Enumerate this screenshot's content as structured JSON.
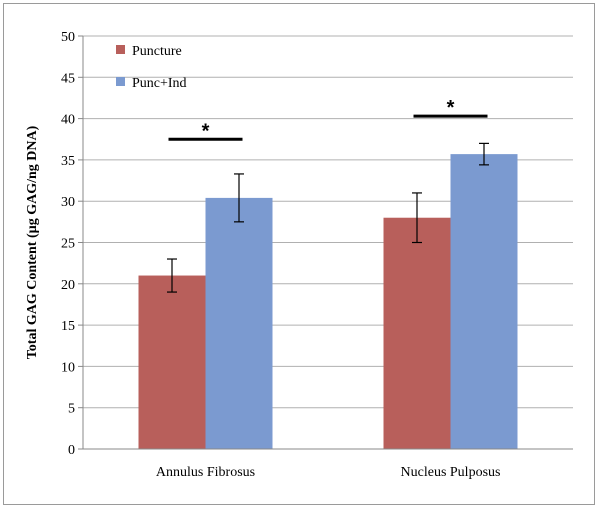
{
  "chart_data": {
    "type": "bar",
    "categories": [
      "Annulus Fibrosus",
      "Nucleus Pulposus"
    ],
    "series": [
      {
        "name": "Puncture",
        "values": [
          21.0,
          28.0
        ],
        "errors": [
          2.0,
          3.0
        ],
        "color": "#b85f5b"
      },
      {
        "name": "Punc+Ind",
        "values": [
          30.4,
          35.7
        ],
        "errors": [
          2.9,
          1.3
        ],
        "color": "#7b9ad0"
      }
    ],
    "ylabel": "Total GAG Content (µg GAG/ng DNA)",
    "xlabel": "",
    "ylim": [
      0,
      50
    ],
    "yticks": [
      0,
      5,
      10,
      15,
      20,
      25,
      30,
      35,
      40,
      45,
      50
    ],
    "grid": true,
    "legend_position": "top-left",
    "significance": [
      {
        "category": "Annulus Fibrosus",
        "label": "*",
        "level": 37.5
      },
      {
        "category": "Nucleus Pulposus",
        "label": "*",
        "level": 40.3
      }
    ]
  }
}
